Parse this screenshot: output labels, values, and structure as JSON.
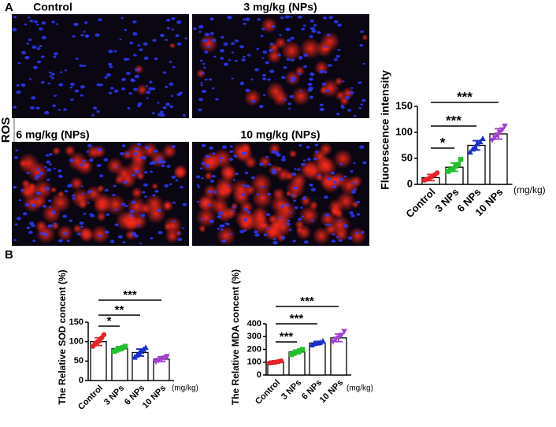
{
  "panel_labels": [
    "A",
    "B"
  ],
  "image_titles": [
    "Control",
    "3 mg/kg (NPs)",
    "6 mg/kg (NPs)",
    "10 mg/kg (NPs)"
  ],
  "image_row_label": "ROS",
  "chart_data": [
    {
      "type": "bar",
      "y_label": "Fluorescence intensity",
      "unit_label": "(mg/kg)",
      "categories": [
        "Control",
        "3 NPs",
        "6 NPs",
        "10 NPs"
      ],
      "colors": [
        "#e8202a",
        "#22c02a",
        "#1a2ecc",
        "#a040d0"
      ],
      "values": [
        13,
        33,
        75,
        97
      ],
      "errors": [
        6,
        8,
        9,
        10
      ],
      "points": [
        [
          8,
          10,
          12,
          15,
          18,
          22
        ],
        [
          25,
          28,
          30,
          35,
          38,
          48
        ],
        [
          62,
          68,
          72,
          78,
          82,
          88
        ],
        [
          85,
          90,
          95,
          100,
          105,
          112
        ]
      ],
      "significance": [
        "*",
        "***",
        "***"
      ],
      "ylim": [
        0,
        150
      ],
      "yticks": [
        0,
        50,
        100,
        150
      ]
    },
    {
      "type": "bar",
      "y_label": "The Relative SOD concent (%)",
      "unit_label": "(mg/kg)",
      "categories": [
        "Control",
        "3 NPs",
        "6 NPs",
        "10 NPs"
      ],
      "colors": [
        "#e8202a",
        "#22c02a",
        "#1a2ecc",
        "#a040d0"
      ],
      "values": [
        100,
        82,
        72,
        55
      ],
      "errors": [
        10,
        5,
        9,
        6
      ],
      "points": [
        [
          88,
          95,
          100,
          102,
          110,
          118
        ],
        [
          75,
          78,
          80,
          82,
          85,
          88
        ],
        [
          60,
          65,
          70,
          75,
          80,
          85
        ],
        [
          48,
          52,
          55,
          58,
          62
        ]
      ],
      "significance": [
        "*",
        "**",
        "***"
      ],
      "ylim": [
        0,
        150
      ],
      "yticks": [
        0,
        50,
        100,
        150
      ]
    },
    {
      "type": "bar",
      "y_label": "The Relative MDA concent (%)",
      "unit_label": "(mg/kg)",
      "categories": [
        "Control",
        "3 NPs",
        "6 NPs",
        "10 NPs"
      ],
      "colors": [
        "#e8202a",
        "#22c02a",
        "#1a2ecc",
        "#a040d0"
      ],
      "values": [
        103,
        180,
        250,
        290
      ],
      "errors": [
        6,
        15,
        12,
        30
      ],
      "points": [
        [
          95,
          98,
          100,
          105,
          110
        ],
        [
          160,
          170,
          180,
          190,
          200
        ],
        [
          235,
          245,
          250,
          255,
          265
        ],
        [
          260,
          280,
          290,
          310,
          340
        ]
      ],
      "significance": [
        "***",
        "***",
        "***"
      ],
      "ylim": [
        0,
        400
      ],
      "yticks": [
        0,
        100,
        200,
        300,
        400
      ]
    }
  ]
}
